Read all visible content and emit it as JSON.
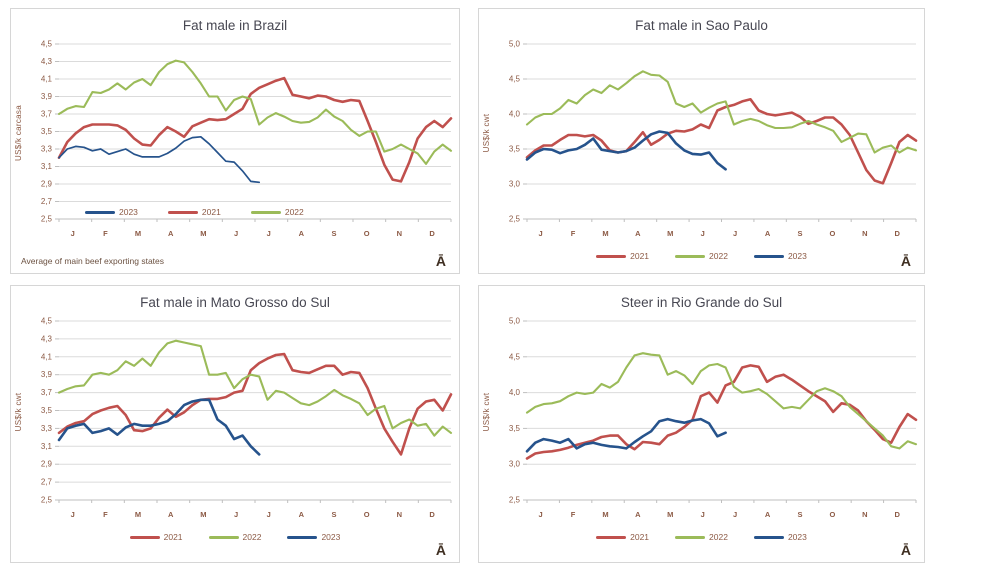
{
  "colors": {
    "red": "#C0504D",
    "green": "#9BBB59",
    "blue": "#26538C",
    "axis_text": "#8C5A45",
    "title_text": "#474752",
    "footnote_text": "#6C5242",
    "grid": "#DBDBDB",
    "axis_line": "#BFBFBF",
    "panel_border": "#D6D6D6",
    "glyph_color": "#3F2F22"
  },
  "chart_data": [
    {
      "type": "line",
      "title": "Fat male in Brazil",
      "ylabel": "US$/k carcasa",
      "ylim": [
        2.5,
        4.5
      ],
      "ytick_step": 0.2,
      "ytick_labels": [
        "2,5",
        "2,7",
        "2,9",
        "3,1",
        "3,3",
        "3,5",
        "3,7",
        "3,9",
        "4,1",
        "4,3",
        "4,5"
      ],
      "months": [
        "J",
        "F",
        "M",
        "A",
        "M",
        "J",
        "J",
        "A",
        "S",
        "O",
        "N",
        "D"
      ],
      "grid": true,
      "legend_position": "inside-bottom-left",
      "legend_order": [
        "2023",
        "2021",
        "2022"
      ],
      "footnote": "Average  of main beef exporting states",
      "corner_glyph": "Ā",
      "series": [
        {
          "name": "2021",
          "color": "red",
          "width": 2.6,
          "values": [
            3.2,
            3.38,
            3.48,
            3.55,
            3.58,
            3.58,
            3.58,
            3.57,
            3.52,
            3.42,
            3.35,
            3.34,
            3.46,
            3.55,
            3.5,
            3.44,
            3.56,
            3.6,
            3.64,
            3.63,
            3.64,
            3.7,
            3.76,
            3.93,
            4.0,
            4.04,
            4.08,
            4.11,
            3.92,
            3.9,
            3.88,
            3.91,
            3.9,
            3.86,
            3.84,
            3.86,
            3.85,
            3.62,
            3.38,
            3.12,
            2.95,
            2.93,
            3.15,
            3.42,
            3.55,
            3.62,
            3.55,
            3.65
          ]
        },
        {
          "name": "2022",
          "color": "green",
          "width": 2.1,
          "values": [
            3.7,
            3.76,
            3.79,
            3.78,
            3.95,
            3.94,
            3.98,
            4.05,
            3.98,
            4.06,
            4.1,
            4.03,
            4.18,
            4.27,
            4.31,
            4.29,
            4.18,
            4.05,
            3.9,
            3.9,
            3.74,
            3.86,
            3.9,
            3.87,
            3.58,
            3.66,
            3.71,
            3.67,
            3.62,
            3.6,
            3.61,
            3.66,
            3.75,
            3.67,
            3.62,
            3.52,
            3.45,
            3.5,
            3.5,
            3.27,
            3.3,
            3.35,
            3.3,
            3.25,
            3.13,
            3.27,
            3.35,
            3.28
          ]
        },
        {
          "name": "2023",
          "color": "blue",
          "width": 1.7,
          "values": [
            3.2,
            3.3,
            3.33,
            3.32,
            3.28,
            3.3,
            3.24,
            3.27,
            3.3,
            3.24,
            3.21,
            3.21,
            3.21,
            3.25,
            3.31,
            3.39,
            3.43,
            3.44,
            3.36,
            3.26,
            3.16,
            3.15,
            3.05,
            2.93,
            2.92
          ]
        }
      ]
    },
    {
      "type": "line",
      "title": "Fat male in Sao Paulo",
      "ylabel": "US$/k cwt",
      "ylim": [
        2.5,
        5.0
      ],
      "ytick_step": 0.5,
      "ytick_labels": [
        "2,5",
        "3,0",
        "3,5",
        "4,0",
        "4,5",
        "5,0"
      ],
      "months": [
        "J",
        "F",
        "M",
        "A",
        "M",
        "J",
        "J",
        "A",
        "S",
        "O",
        "N",
        "D"
      ],
      "grid": true,
      "legend_position": "below",
      "legend_order": [
        "2021",
        "2022",
        "2023"
      ],
      "footnote": "",
      "corner_glyph": "Ā",
      "series": [
        {
          "name": "2021",
          "color": "red",
          "width": 2.6,
          "values": [
            3.38,
            3.48,
            3.55,
            3.55,
            3.63,
            3.7,
            3.7,
            3.68,
            3.7,
            3.62,
            3.48,
            3.45,
            3.47,
            3.6,
            3.74,
            3.56,
            3.63,
            3.72,
            3.76,
            3.75,
            3.78,
            3.85,
            3.8,
            4.05,
            4.1,
            4.13,
            4.18,
            4.21,
            4.05,
            4.0,
            3.98,
            4.0,
            4.02,
            3.96,
            3.86,
            3.9,
            3.95,
            3.95,
            3.85,
            3.7,
            3.45,
            3.2,
            3.05,
            3.01,
            3.3,
            3.6,
            3.7,
            3.62
          ]
        },
        {
          "name": "2022",
          "color": "green",
          "width": 2.1,
          "values": [
            3.85,
            3.95,
            4.0,
            4.0,
            4.08,
            4.2,
            4.15,
            4.27,
            4.35,
            4.3,
            4.41,
            4.35,
            4.44,
            4.54,
            4.61,
            4.56,
            4.55,
            4.46,
            4.15,
            4.1,
            4.15,
            4.02,
            4.09,
            4.15,
            4.18,
            3.85,
            3.9,
            3.93,
            3.9,
            3.84,
            3.8,
            3.8,
            3.81,
            3.86,
            3.9,
            3.85,
            3.81,
            3.76,
            3.6,
            3.66,
            3.72,
            3.71,
            3.45,
            3.52,
            3.55,
            3.45,
            3.52,
            3.48
          ]
        },
        {
          "name": "2023",
          "color": "blue",
          "width": 2.6,
          "values": [
            3.35,
            3.45,
            3.5,
            3.49,
            3.44,
            3.48,
            3.5,
            3.56,
            3.65,
            3.49,
            3.47,
            3.45,
            3.47,
            3.52,
            3.62,
            3.71,
            3.75,
            3.73,
            3.58,
            3.48,
            3.43,
            3.42,
            3.45,
            3.3,
            3.21
          ]
        }
      ]
    },
    {
      "type": "line",
      "title": "Fat male in Mato Grosso do Sul",
      "ylabel": "US$/k cwt",
      "ylim": [
        2.5,
        4.5
      ],
      "ytick_step": 0.2,
      "ytick_labels": [
        "2,5",
        "2,7",
        "2,9",
        "3,1",
        "3,3",
        "3,5",
        "3,7",
        "3,9",
        "4,1",
        "4,3",
        "4,5"
      ],
      "months": [
        "J",
        "F",
        "M",
        "A",
        "M",
        "J",
        "J",
        "A",
        "S",
        "O",
        "N",
        "D"
      ],
      "grid": true,
      "legend_position": "below",
      "legend_order": [
        "2021",
        "2022",
        "2023"
      ],
      "footnote": "",
      "corner_glyph": "Ā",
      "series": [
        {
          "name": "2021",
          "color": "red",
          "width": 2.6,
          "values": [
            3.25,
            3.32,
            3.36,
            3.38,
            3.46,
            3.5,
            3.53,
            3.55,
            3.45,
            3.28,
            3.27,
            3.3,
            3.42,
            3.51,
            3.43,
            3.48,
            3.56,
            3.62,
            3.63,
            3.63,
            3.65,
            3.7,
            3.72,
            3.95,
            4.03,
            4.08,
            4.12,
            4.13,
            3.95,
            3.93,
            3.92,
            3.96,
            4.0,
            4.0,
            3.9,
            3.93,
            3.92,
            3.75,
            3.52,
            3.3,
            3.15,
            3.01,
            3.3,
            3.52,
            3.6,
            3.62,
            3.5,
            3.68
          ]
        },
        {
          "name": "2022",
          "color": "green",
          "width": 2.1,
          "values": [
            3.7,
            3.74,
            3.77,
            3.78,
            3.9,
            3.92,
            3.9,
            3.95,
            4.05,
            4.0,
            4.08,
            4.0,
            4.15,
            4.25,
            4.28,
            4.26,
            4.24,
            4.22,
            3.9,
            3.9,
            3.92,
            3.75,
            3.85,
            3.9,
            3.88,
            3.62,
            3.72,
            3.7,
            3.64,
            3.58,
            3.56,
            3.6,
            3.66,
            3.73,
            3.67,
            3.63,
            3.58,
            3.45,
            3.52,
            3.55,
            3.3,
            3.36,
            3.4,
            3.33,
            3.35,
            3.22,
            3.32,
            3.25
          ]
        },
        {
          "name": "2023",
          "color": "blue",
          "width": 2.6,
          "values": [
            3.17,
            3.3,
            3.33,
            3.35,
            3.25,
            3.27,
            3.3,
            3.23,
            3.31,
            3.35,
            3.33,
            3.33,
            3.35,
            3.38,
            3.46,
            3.56,
            3.6,
            3.62,
            3.62,
            3.4,
            3.33,
            3.18,
            3.22,
            3.1,
            3.01
          ]
        }
      ]
    },
    {
      "type": "line",
      "title": "Steer  in Rio Grande do Sul",
      "ylabel": "US$/k cwt",
      "ylim": [
        2.5,
        5.0
      ],
      "ytick_step": 0.5,
      "ytick_labels": [
        "2,5",
        "3,0",
        "3,5",
        "4,0",
        "4,5",
        "5,0"
      ],
      "months": [
        "J",
        "F",
        "M",
        "A",
        "M",
        "J",
        "J",
        "A",
        "S",
        "O",
        "N",
        "D"
      ],
      "grid": true,
      "legend_position": "below",
      "legend_order": [
        "2021",
        "2022",
        "2023"
      ],
      "footnote": "",
      "corner_glyph": "Ā",
      "series": [
        {
          "name": "2021",
          "color": "red",
          "width": 2.6,
          "values": [
            3.08,
            3.15,
            3.17,
            3.18,
            3.2,
            3.23,
            3.27,
            3.3,
            3.33,
            3.38,
            3.4,
            3.4,
            3.28,
            3.21,
            3.31,
            3.3,
            3.28,
            3.4,
            3.44,
            3.52,
            3.62,
            3.95,
            4.0,
            3.86,
            4.1,
            4.15,
            4.35,
            4.38,
            4.36,
            4.15,
            4.22,
            4.25,
            4.18,
            4.1,
            4.02,
            3.95,
            3.88,
            3.73,
            3.85,
            3.83,
            3.75,
            3.6,
            3.48,
            3.35,
            3.3,
            3.52,
            3.7,
            3.62
          ]
        },
        {
          "name": "2022",
          "color": "green",
          "width": 2.1,
          "values": [
            3.72,
            3.8,
            3.84,
            3.85,
            3.88,
            3.95,
            4.0,
            3.98,
            4.0,
            4.12,
            4.07,
            4.15,
            4.35,
            4.52,
            4.55,
            4.53,
            4.52,
            4.25,
            4.3,
            4.24,
            4.12,
            4.3,
            4.38,
            4.4,
            4.35,
            4.08,
            4.0,
            4.02,
            4.05,
            3.98,
            3.88,
            3.78,
            3.8,
            3.78,
            3.9,
            4.02,
            4.06,
            4.02,
            3.95,
            3.8,
            3.7,
            3.6,
            3.5,
            3.4,
            3.25,
            3.22,
            3.32,
            3.28
          ]
        },
        {
          "name": "2023",
          "color": "blue",
          "width": 2.6,
          "values": [
            3.18,
            3.3,
            3.35,
            3.33,
            3.3,
            3.35,
            3.22,
            3.28,
            3.3,
            3.27,
            3.25,
            3.24,
            3.22,
            3.31,
            3.39,
            3.46,
            3.6,
            3.63,
            3.6,
            3.58,
            3.61,
            3.63,
            3.57,
            3.39,
            3.44
          ]
        }
      ]
    }
  ]
}
